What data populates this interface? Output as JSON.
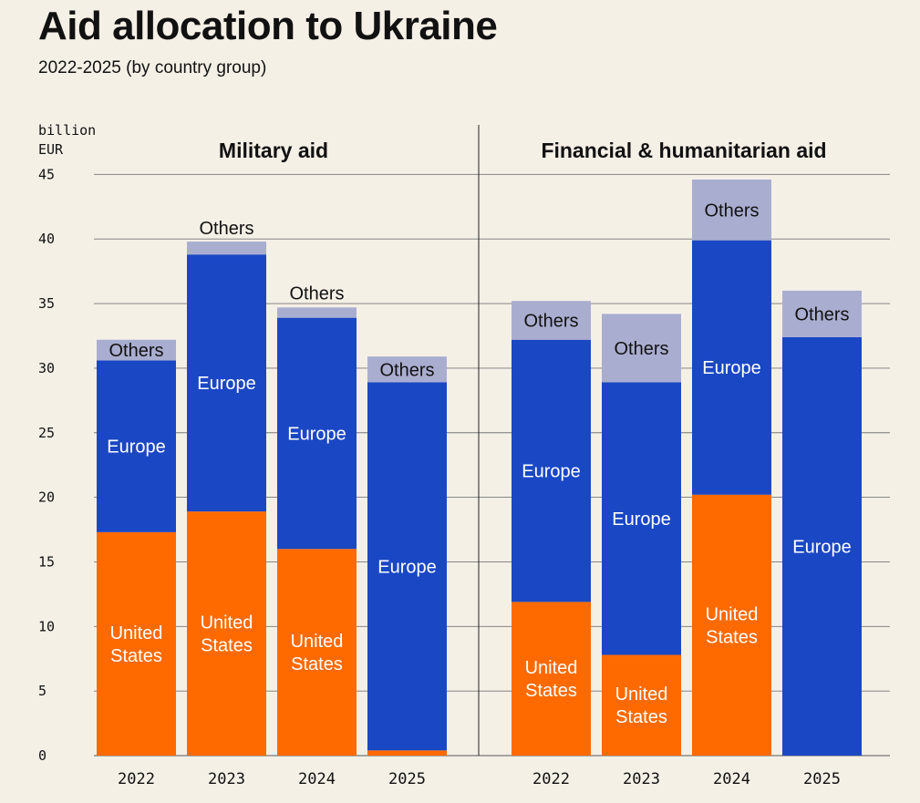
{
  "title": "Aid allocation to Ukraine",
  "subtitle": "2022-2025 (by country group)",
  "colors": {
    "background": "#f5f0e6",
    "united_states": "#ff6a00",
    "europe": "#1a47c4",
    "others": "#a9aed0",
    "grid": "#777777"
  },
  "chart_data": [
    {
      "type": "bar",
      "stacked": true,
      "title": "Military aid",
      "ylabel": "billion EUR",
      "ylim": [
        0,
        45
      ],
      "yticks": [
        0,
        5,
        10,
        15,
        20,
        25,
        30,
        35,
        40,
        45
      ],
      "categories": [
        "2022",
        "2023",
        "2024",
        "2025"
      ],
      "series": [
        {
          "name": "United States",
          "values": [
            17.3,
            18.9,
            16.0,
            0.4
          ]
        },
        {
          "name": "Europe",
          "values": [
            13.3,
            19.9,
            17.9,
            28.5
          ]
        },
        {
          "name": "Others",
          "values": [
            1.6,
            1.0,
            0.8,
            2.0
          ]
        }
      ]
    },
    {
      "type": "bar",
      "stacked": true,
      "title": "Financial & humanitarian aid",
      "ylabel": "billion EUR",
      "ylim": [
        0,
        45
      ],
      "yticks": [
        0,
        5,
        10,
        15,
        20,
        25,
        30,
        35,
        40,
        45
      ],
      "categories": [
        "2022",
        "2023",
        "2024",
        "2025"
      ],
      "series": [
        {
          "name": "United States",
          "values": [
            11.9,
            7.8,
            20.2,
            0
          ]
        },
        {
          "name": "Europe",
          "values": [
            20.3,
            21.1,
            19.7,
            32.4
          ]
        },
        {
          "name": "Others",
          "values": [
            3.0,
            5.3,
            4.7,
            3.6
          ]
        }
      ]
    }
  ],
  "segment_labels": {
    "United States": [
      "United",
      "States"
    ],
    "Europe": [
      "Europe"
    ],
    "Others": [
      "Others"
    ]
  }
}
